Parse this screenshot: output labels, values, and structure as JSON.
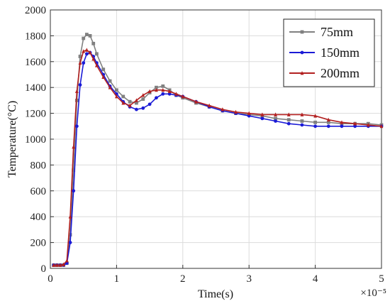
{
  "chart_data": {
    "type": "line",
    "xlabel": "Time(s)",
    "ylabel": "Temperature(°C)",
    "x_multiplier_label": "×10⁻⁵",
    "xlim": [
      0,
      5
    ],
    "ylim": [
      0,
      2000
    ],
    "x_ticks": [
      "0",
      "1",
      "2",
      "3",
      "4",
      "5"
    ],
    "y_ticks": [
      "0",
      "200",
      "400",
      "600",
      "800",
      "1000",
      "1200",
      "1400",
      "1600",
      "1800",
      "2000"
    ],
    "grid": true,
    "legend_position": "top-right",
    "series": [
      {
        "name": "75mm",
        "color": "#808080",
        "marker": "square",
        "x": [
          0.05,
          0.1,
          0.15,
          0.2,
          0.25,
          0.3,
          0.35,
          0.4,
          0.45,
          0.5,
          0.55,
          0.6,
          0.65,
          0.7,
          0.8,
          0.9,
          1.0,
          1.1,
          1.2,
          1.3,
          1.4,
          1.5,
          1.6,
          1.7,
          1.8,
          1.9,
          2.0,
          2.2,
          2.4,
          2.6,
          2.8,
          3.0,
          3.2,
          3.4,
          3.6,
          3.8,
          4.0,
          4.2,
          4.4,
          4.6,
          4.8,
          5.0
        ],
        "y": [
          25,
          25,
          25,
          25,
          40,
          260,
          760,
          1300,
          1640,
          1780,
          1810,
          1800,
          1740,
          1660,
          1540,
          1450,
          1380,
          1330,
          1290,
          1280,
          1310,
          1360,
          1400,
          1410,
          1380,
          1340,
          1320,
          1280,
          1250,
          1220,
          1200,
          1190,
          1180,
          1160,
          1150,
          1140,
          1130,
          1130,
          1120,
          1120,
          1120,
          1110
        ]
      },
      {
        "name": "150mm",
        "color": "#1a1ad6",
        "marker": "circle",
        "x": [
          0.05,
          0.1,
          0.15,
          0.2,
          0.25,
          0.3,
          0.35,
          0.4,
          0.45,
          0.5,
          0.55,
          0.6,
          0.65,
          0.7,
          0.8,
          0.9,
          1.0,
          1.1,
          1.2,
          1.3,
          1.4,
          1.5,
          1.6,
          1.7,
          1.8,
          1.9,
          2.0,
          2.2,
          2.4,
          2.6,
          2.8,
          3.0,
          3.2,
          3.4,
          3.6,
          3.8,
          4.0,
          4.2,
          4.4,
          4.6,
          4.8,
          5.0
        ],
        "y": [
          25,
          25,
          25,
          25,
          40,
          200,
          600,
          1100,
          1420,
          1590,
          1660,
          1670,
          1640,
          1590,
          1500,
          1410,
          1350,
          1290,
          1250,
          1230,
          1240,
          1270,
          1320,
          1350,
          1350,
          1340,
          1330,
          1290,
          1250,
          1220,
          1200,
          1180,
          1160,
          1140,
          1120,
          1110,
          1100,
          1100,
          1100,
          1100,
          1100,
          1100
        ]
      },
      {
        "name": "200mm",
        "color": "#b22020",
        "marker": "triangle",
        "x": [
          0.05,
          0.1,
          0.15,
          0.2,
          0.25,
          0.3,
          0.35,
          0.4,
          0.45,
          0.5,
          0.55,
          0.6,
          0.65,
          0.7,
          0.8,
          0.9,
          1.0,
          1.1,
          1.2,
          1.3,
          1.4,
          1.5,
          1.6,
          1.7,
          1.8,
          1.9,
          2.0,
          2.2,
          2.4,
          2.6,
          2.8,
          3.0,
          3.2,
          3.4,
          3.6,
          3.8,
          4.0,
          4.2,
          4.4,
          4.6,
          4.8,
          5.0
        ],
        "y": [
          25,
          25,
          25,
          30,
          60,
          400,
          940,
          1370,
          1590,
          1680,
          1690,
          1670,
          1620,
          1570,
          1480,
          1400,
          1330,
          1280,
          1260,
          1300,
          1340,
          1370,
          1380,
          1380,
          1370,
          1350,
          1330,
          1290,
          1260,
          1230,
          1210,
          1200,
          1190,
          1190,
          1190,
          1190,
          1180,
          1150,
          1130,
          1120,
          1110,
          1100
        ]
      }
    ]
  }
}
